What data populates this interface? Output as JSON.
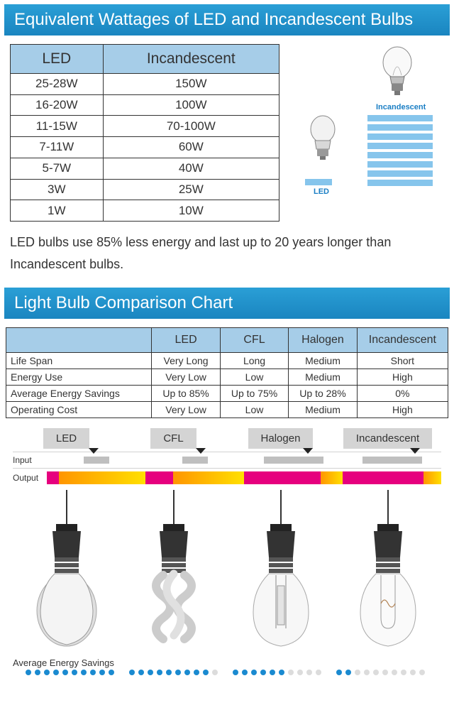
{
  "banner1": "Equivalent Wattages of LED and Incandescent Bulbs",
  "banner2": "Light Bulb Comparison Chart",
  "wattage": {
    "columns": [
      "LED",
      "Incandescent"
    ],
    "rows": [
      [
        "25-28W",
        "150W"
      ],
      [
        "16-20W",
        "100W"
      ],
      [
        "11-15W",
        "70-100W"
      ],
      [
        "7-11W",
        "60W"
      ],
      [
        "5-7W",
        "40W"
      ],
      [
        "3W",
        "25W"
      ],
      [
        "1W",
        "10W"
      ]
    ]
  },
  "vis": {
    "led_label": "LED",
    "inc_label": "Incandescent",
    "led_bars": 1,
    "inc_bars": 8,
    "bar_color": "#86c5ec",
    "bar_width_led": 38,
    "bar_width_inc": 92
  },
  "caption": "LED bulbs use 85% less energy and last up to 20 years longer than Incandescent bulbs.",
  "comparison": {
    "col_headers": [
      "",
      "LED",
      "CFL",
      "Halogen",
      "Incandescent"
    ],
    "row_headers": [
      "Life Span",
      "Energy Use",
      "Average Energy Savings",
      "Operating Cost"
    ],
    "cells": [
      [
        "Very Long",
        "Long",
        "Medium",
        "Short"
      ],
      [
        "Very Low",
        "Low",
        "Medium",
        "High"
      ],
      [
        "Up to 85%",
        "Up to 75%",
        "Up to 28%",
        "0%"
      ],
      [
        "Very Low",
        "Low",
        "Medium",
        "High"
      ]
    ]
  },
  "io": {
    "types": [
      "LED",
      "CFL",
      "Halogen",
      "Incandescent"
    ],
    "input_label": "Input",
    "output_label": "Output",
    "input_widths": [
      36,
      36,
      84,
      84
    ],
    "output": [
      {
        "heat": 12,
        "light": 88
      },
      {
        "heat": 28,
        "light": 72
      },
      {
        "heat": 78,
        "light": 22
      },
      {
        "heat": 82,
        "light": 18
      }
    ],
    "heat_color": "#e6007e",
    "light_gradient": [
      "#ff9500",
      "#ffe000"
    ],
    "input_color": "#bfbfbf"
  },
  "aes": {
    "label": "Average Energy Savings",
    "total_dots": 10,
    "filled": [
      10,
      9,
      6,
      2
    ],
    "on_color": "#1a8ad0",
    "off_color": "#dcdcdc"
  },
  "colors": {
    "banner_gradient": [
      "#2a9fd6",
      "#1a85c0"
    ],
    "table_header_bg": "#a6cde8",
    "border": "#333333",
    "text_blue": "#1a7ec4"
  }
}
